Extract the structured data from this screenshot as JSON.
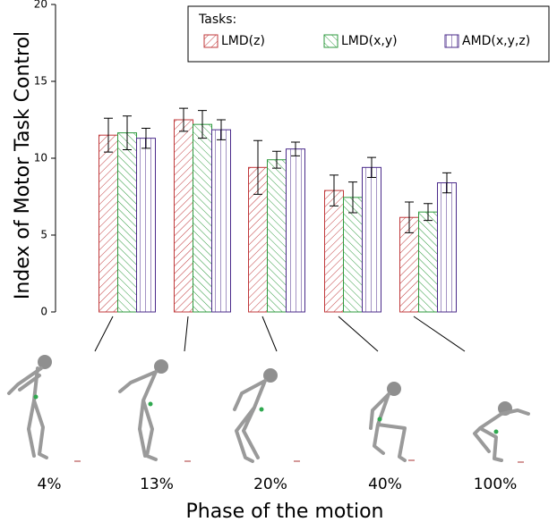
{
  "chart_data": {
    "type": "bar",
    "y_label": "Index of Motor Task Control",
    "x_label": "Phase of the motion",
    "legend_title": "Tasks:",
    "categories": [
      "4%",
      "13%",
      "20%",
      "40%",
      "100%"
    ],
    "series": [
      {
        "name": "LMD(z)",
        "color": "#c0393b",
        "values": [
          11.5,
          12.5,
          9.4,
          7.9,
          6.15
        ],
        "errors": [
          1.1,
          0.75,
          1.75,
          1.0,
          1.0
        ]
      },
      {
        "name": "LMD(x,y)",
        "color": "#2e9a3e",
        "values": [
          11.65,
          12.2,
          9.9,
          7.45,
          6.5
        ],
        "errors": [
          1.1,
          0.9,
          0.55,
          1.0,
          0.55
        ]
      },
      {
        "name": "AMD(x,y,z)",
        "color": "#4a2a8a",
        "values": [
          11.3,
          11.85,
          10.6,
          9.4,
          8.4
        ],
        "errors": [
          0.65,
          0.65,
          0.45,
          0.65,
          0.65
        ]
      }
    ],
    "ylim": [
      0,
      20
    ],
    "yticks": [
      0,
      5,
      10,
      15,
      20
    ]
  }
}
